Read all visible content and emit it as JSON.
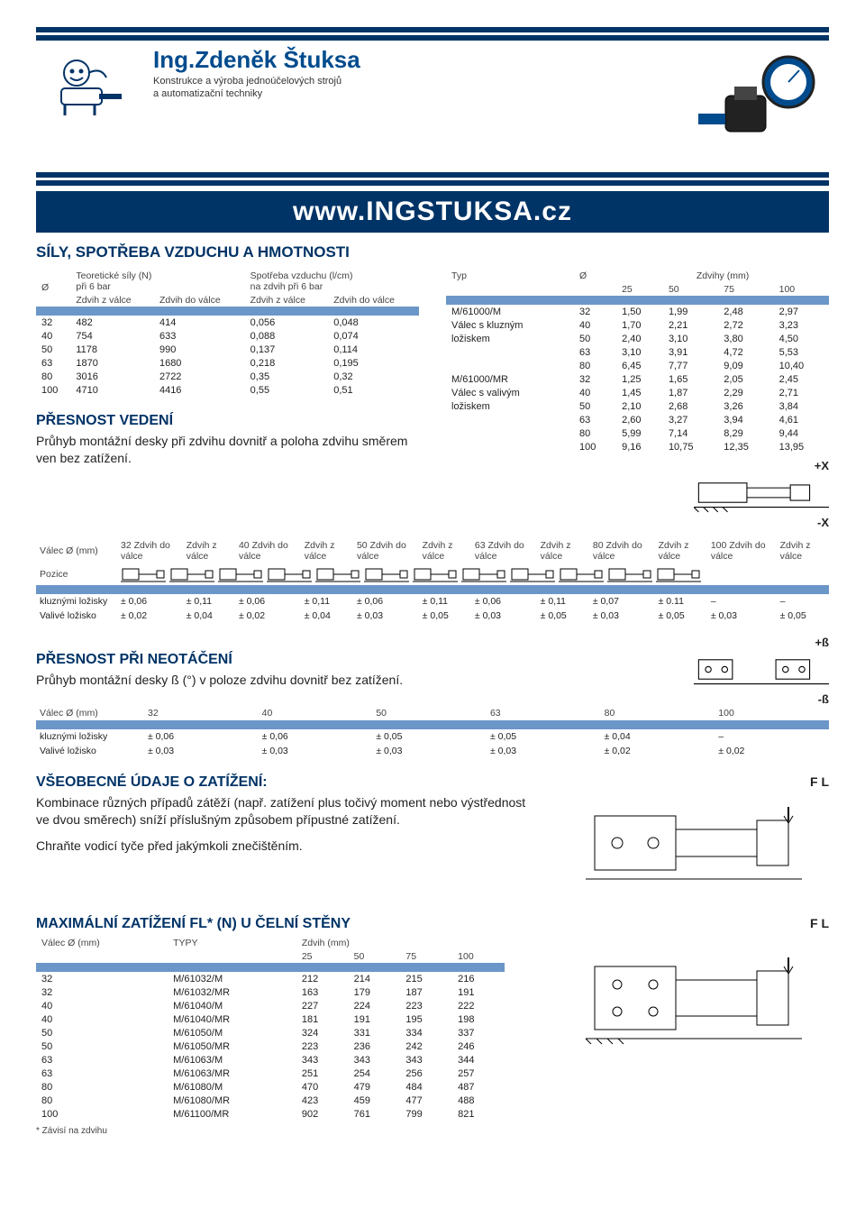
{
  "logo": {
    "title": "Ing.Zdeněk Štuksa",
    "subtitle1": "Konstrukce a výroba jednoúčelových strojů",
    "subtitle2": "a automatizační techniky"
  },
  "url": "www.INGSTUKSA.cz",
  "colors": {
    "navy": "#003366",
    "blue_band": "#6b96c8",
    "logo_blue": "#004b8d"
  },
  "sec_forces": {
    "title": "SÍLY, SPOTŘEBA VZDUCHU A HMOTNOSTI"
  },
  "t1": {
    "h1_col1": "Ø",
    "h1_col2": "Teoretické síly (N)",
    "h1_col3": "při 6 bar",
    "h1_col4": "Spotřeba vzduchu (l/cm)",
    "h1_col5": "na zdvih při 6 bar",
    "sub1": "Zdvih z válce",
    "sub2": "Zdvih do válce",
    "sub3": "Zdvih z válce",
    "sub4": "Zdvih do válce",
    "rows": [
      [
        "32",
        "482",
        "414",
        "0,056",
        "0,048"
      ],
      [
        "40",
        "754",
        "633",
        "0,088",
        "0,074"
      ],
      [
        "50",
        "1178",
        "990",
        "0,137",
        "0,114"
      ],
      [
        "63",
        "1870",
        "1680",
        "0,218",
        "0,195"
      ],
      [
        "80",
        "3016",
        "2722",
        "0,35",
        "0,32"
      ],
      [
        "100",
        "4710",
        "4416",
        "0,55",
        "0,51"
      ]
    ]
  },
  "t2": {
    "h_typ": "Typ",
    "h_dia": "Ø",
    "h_zdvihy": "Zdvihy (mm)",
    "h25": "25",
    "h50": "50",
    "h75": "75",
    "h100": "100",
    "rows": [
      [
        "M/61000/M",
        "32",
        "1,50",
        "1,99",
        "2,48",
        "2,97"
      ],
      [
        "Válec s kluzným",
        "40",
        "1,70",
        "2,21",
        "2,72",
        "3,23"
      ],
      [
        "ložiskem",
        "50",
        "2,40",
        "3,10",
        "3,80",
        "4,50"
      ],
      [
        "",
        "63",
        "3,10",
        "3,91",
        "4,72",
        "5,53"
      ],
      [
        "",
        "80",
        "6,45",
        "7,77",
        "9,09",
        "10,40"
      ],
      [
        "M/61000/MR",
        "32",
        "1,25",
        "1,65",
        "2,05",
        "2,45"
      ],
      [
        "Válec s valivým",
        "40",
        "1,45",
        "1,87",
        "2,29",
        "2,71"
      ],
      [
        "ložiskem",
        "50",
        "2,10",
        "2,68",
        "3,26",
        "3,84"
      ],
      [
        "",
        "63",
        "2,60",
        "3,27",
        "3,94",
        "4,61"
      ],
      [
        "",
        "80",
        "5,99",
        "7,14",
        "8,29",
        "9,44"
      ],
      [
        "",
        "100",
        "9,16",
        "10,75",
        "12,35",
        "13,95"
      ]
    ]
  },
  "precision": {
    "title": "PŘESNOST VEDENÍ",
    "text": "Průhyb montážní desky při zdvihu dovnitř a poloha zdvihu směrem ven bez zatížení.",
    "plus": "+X",
    "minus": "-X"
  },
  "t3": {
    "h_valec": "Válec Ø (mm)",
    "h_pozice": "Pozice",
    "cols": [
      "32 Zdvih do válce",
      "Zdvih z válce",
      "40 Zdvih do válce",
      "Zdvih z válce",
      "50 Zdvih do válce",
      "Zdvih z válce",
      "63 Zdvih do válce",
      "Zdvih z válce",
      "80 Zdvih do válce",
      "Zdvih z válce",
      "100 Zdvih do válce",
      "Zdvih z válce"
    ],
    "r1_label": "kluznými ložisky",
    "r1": [
      "± 0,06",
      "± 0,11",
      "± 0,06",
      "± 0,11",
      "± 0,06",
      "± 0,11",
      "± 0,06",
      "± 0,11",
      "± 0,07",
      "± 0.11",
      "–",
      "–"
    ],
    "r2_label": "Valivé ložisko",
    "r2": [
      "± 0,02",
      "± 0,04",
      "± 0,02",
      "± 0,04",
      "± 0,03",
      "± 0,05",
      "± 0,03",
      "± 0,05",
      "± 0,03",
      "± 0,05",
      "± 0,03",
      "± 0,05"
    ]
  },
  "precision2": {
    "title": "PŘESNOST PŘI NEOTÁČENÍ",
    "text": "Průhyb montážní desky ß (°) v poloze zdvihu dovnitř bez zatížení.",
    "plus": "+ß",
    "minus": "-ß"
  },
  "t4": {
    "h_valec": "Válec Ø (mm)",
    "h32": "32",
    "h40": "40",
    "h50": "50",
    "h63": "63",
    "h80": "80",
    "h100": "100",
    "r1_label": "kluznými ložisky",
    "r1": [
      "± 0,06",
      "± 0,06",
      "± 0,05",
      "± 0,05",
      "± 0,04",
      "–"
    ],
    "r2_label": "Valivé ložisko",
    "r2": [
      "± 0,03",
      "± 0,03",
      "± 0,03",
      "± 0,03",
      "± 0,02",
      "± 0,02"
    ]
  },
  "general": {
    "title": "VŠEOBECNÉ ÚDAJE O ZATÍŽENÍ:",
    "text1": "Kombinace různých případů zátěží (např. zatížení plus točivý moment nebo výstřednost ve dvou směrech) sníží příslušným způsobem přípustné zatížení.",
    "text2": "Chraňte vodicí tyče před jakýmkoli znečištěním.",
    "fl": "F L"
  },
  "maxload": {
    "title": "MAXIMÁLNÍ ZATÍŽENÍ FL* (N) U ČELNÍ STĚNY",
    "h_valec": "Válec Ø (mm)",
    "h_typy": "TYPY",
    "h_zdvih": "Zdvih (mm)",
    "h25": "25",
    "h50": "50",
    "h75": "75",
    "h100": "100",
    "rows": [
      [
        "32",
        "M/61032/M",
        "212",
        "214",
        "215",
        "216"
      ],
      [
        "32",
        "M/61032/MR",
        "163",
        "179",
        "187",
        "191"
      ],
      [
        "40",
        "M/61040/M",
        "227",
        "224",
        "223",
        "222"
      ],
      [
        "40",
        "M/61040/MR",
        "181",
        "191",
        "195",
        "198"
      ],
      [
        "50",
        "M/61050/M",
        "324",
        "331",
        "334",
        "337"
      ],
      [
        "50",
        "M/61050/MR",
        "223",
        "236",
        "242",
        "246"
      ],
      [
        "63",
        "M/61063/M",
        "343",
        "343",
        "343",
        "344"
      ],
      [
        "63",
        "M/61063/MR",
        "251",
        "254",
        "256",
        "257"
      ],
      [
        "80",
        "M/61080/M",
        "470",
        "479",
        "484",
        "487"
      ],
      [
        "80",
        "M/61080/MR",
        "423",
        "459",
        "477",
        "488"
      ],
      [
        "100",
        "M/61100/MR",
        "902",
        "761",
        "799",
        "821"
      ]
    ],
    "footnote": "* Závisí na zdvihu",
    "fl": "F L"
  }
}
